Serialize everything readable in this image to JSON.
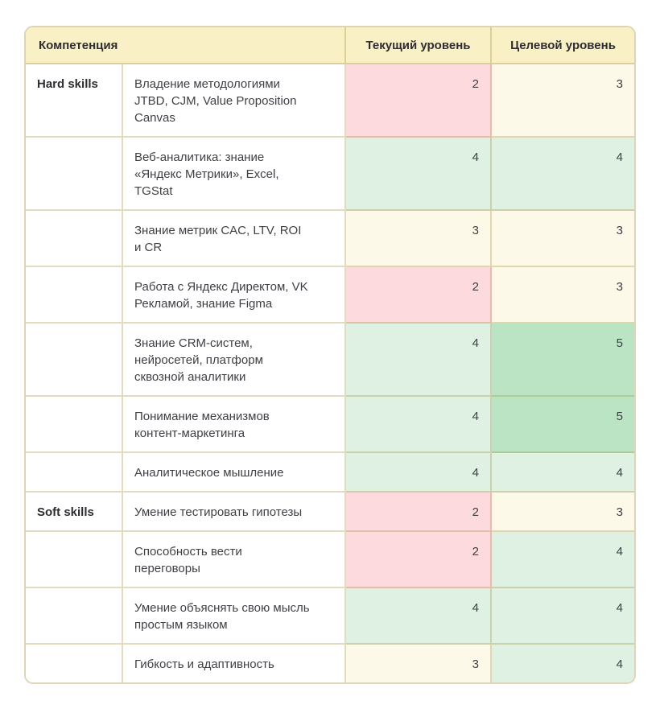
{
  "table": {
    "headers": {
      "competency": "Компетенция",
      "current": "Текущий уровень",
      "target": "Целевой уровень"
    },
    "rows": [
      {
        "category": "Hard skills",
        "skill": "Владение методологиями\nJTBD, CJM, Value Proposition\nCanvas",
        "current": 2,
        "target": 3
      },
      {
        "category": "",
        "skill": "Веб-аналитика: знание\n«Яндекс Метрики», Excel,\nTGStat",
        "current": 4,
        "target": 4
      },
      {
        "category": "",
        "skill": "Знание метрик CAC, LTV, ROI\nи CR",
        "current": 3,
        "target": 3
      },
      {
        "category": "",
        "skill": "Работа с Яндекс Директом, VK\nРекламой, знание Figma",
        "current": 2,
        "target": 3
      },
      {
        "category": "",
        "skill": "Знание CRM-систем,\nнейросетей, платформ\nсквозной аналитики",
        "current": 4,
        "target": 5
      },
      {
        "category": "",
        "skill": "Понимание механизмов\nконтент-маркетинга",
        "current": 4,
        "target": 5
      },
      {
        "category": "",
        "skill": "Аналитическое мышление",
        "current": 4,
        "target": 4
      },
      {
        "category": "Soft skills",
        "skill": "Умение тестировать гипотезы",
        "current": 2,
        "target": 3
      },
      {
        "category": "",
        "skill": "Способность вести\nпереговоры",
        "current": 2,
        "target": 4
      },
      {
        "category": "",
        "skill": "Умение объяснять свою мысль\nпростым языком",
        "current": 4,
        "target": 4
      },
      {
        "category": "",
        "skill": "Гибкость и адаптивность",
        "current": 3,
        "target": 4
      }
    ],
    "colors": {
      "header_bg": "#faf0c5",
      "levels": {
        "2": "#fcdade",
        "3": "#fdf9e9",
        "4": "#def1e3",
        "5": "#bbe4c4"
      }
    }
  }
}
